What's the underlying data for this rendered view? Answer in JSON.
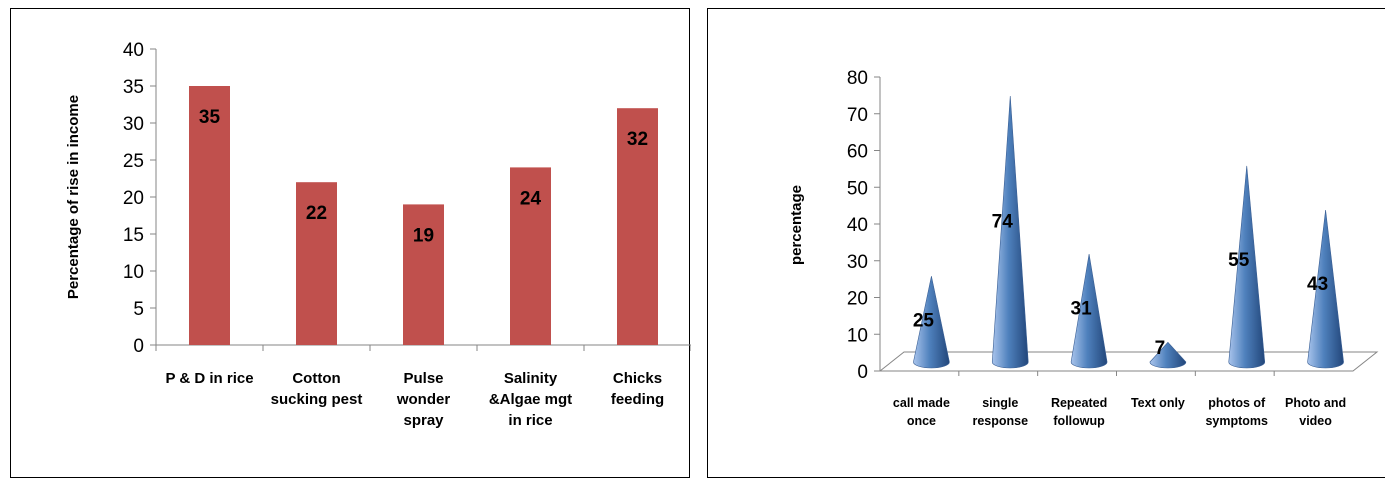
{
  "chart_data": [
    {
      "type": "bar",
      "title": "",
      "xlabel": "",
      "ylabel": "Percentage of rise in income",
      "ylim": [
        0,
        40
      ],
      "yticks": [
        "0",
        "5",
        "10",
        "15",
        "20",
        "25",
        "30",
        "35",
        "40"
      ],
      "categories": [
        [
          "P & D in rice"
        ],
        [
          "Cotton",
          "sucking pest"
        ],
        [
          "Pulse",
          "wonder",
          "spray"
        ],
        [
          "Salinity",
          "&Algae mgt",
          "in rice"
        ],
        [
          "Chicks",
          "feeding"
        ]
      ],
      "values": [
        35,
        22,
        19,
        24,
        32
      ],
      "data_labels": [
        "35",
        "22",
        "19",
        "24",
        "32"
      ],
      "colors": {
        "bar": "#c0504d"
      },
      "grid": false,
      "legend": "none"
    },
    {
      "type": "bar",
      "style": "3d-cone",
      "title": "",
      "xlabel": "",
      "ylabel": "percentage",
      "ylim": [
        0,
        80
      ],
      "yticks": [
        "0",
        "10",
        "20",
        "30",
        "40",
        "50",
        "60",
        "70",
        "80"
      ],
      "categories": [
        [
          "call made",
          "once"
        ],
        [
          "single",
          "response"
        ],
        [
          "Repeated",
          "followup"
        ],
        [
          "Text only"
        ],
        [
          "photos of",
          "symptoms"
        ],
        [
          "Photo and",
          "video"
        ]
      ],
      "values": [
        25,
        74,
        31,
        7,
        55,
        43
      ],
      "data_labels": [
        "25",
        "74",
        "31",
        "7",
        "55",
        "43"
      ],
      "colors": {
        "cone_light": "#a9c4ec",
        "cone_mid": "#4f81bd",
        "cone_dark": "#22467a"
      },
      "grid": false,
      "legend": "none"
    }
  ]
}
